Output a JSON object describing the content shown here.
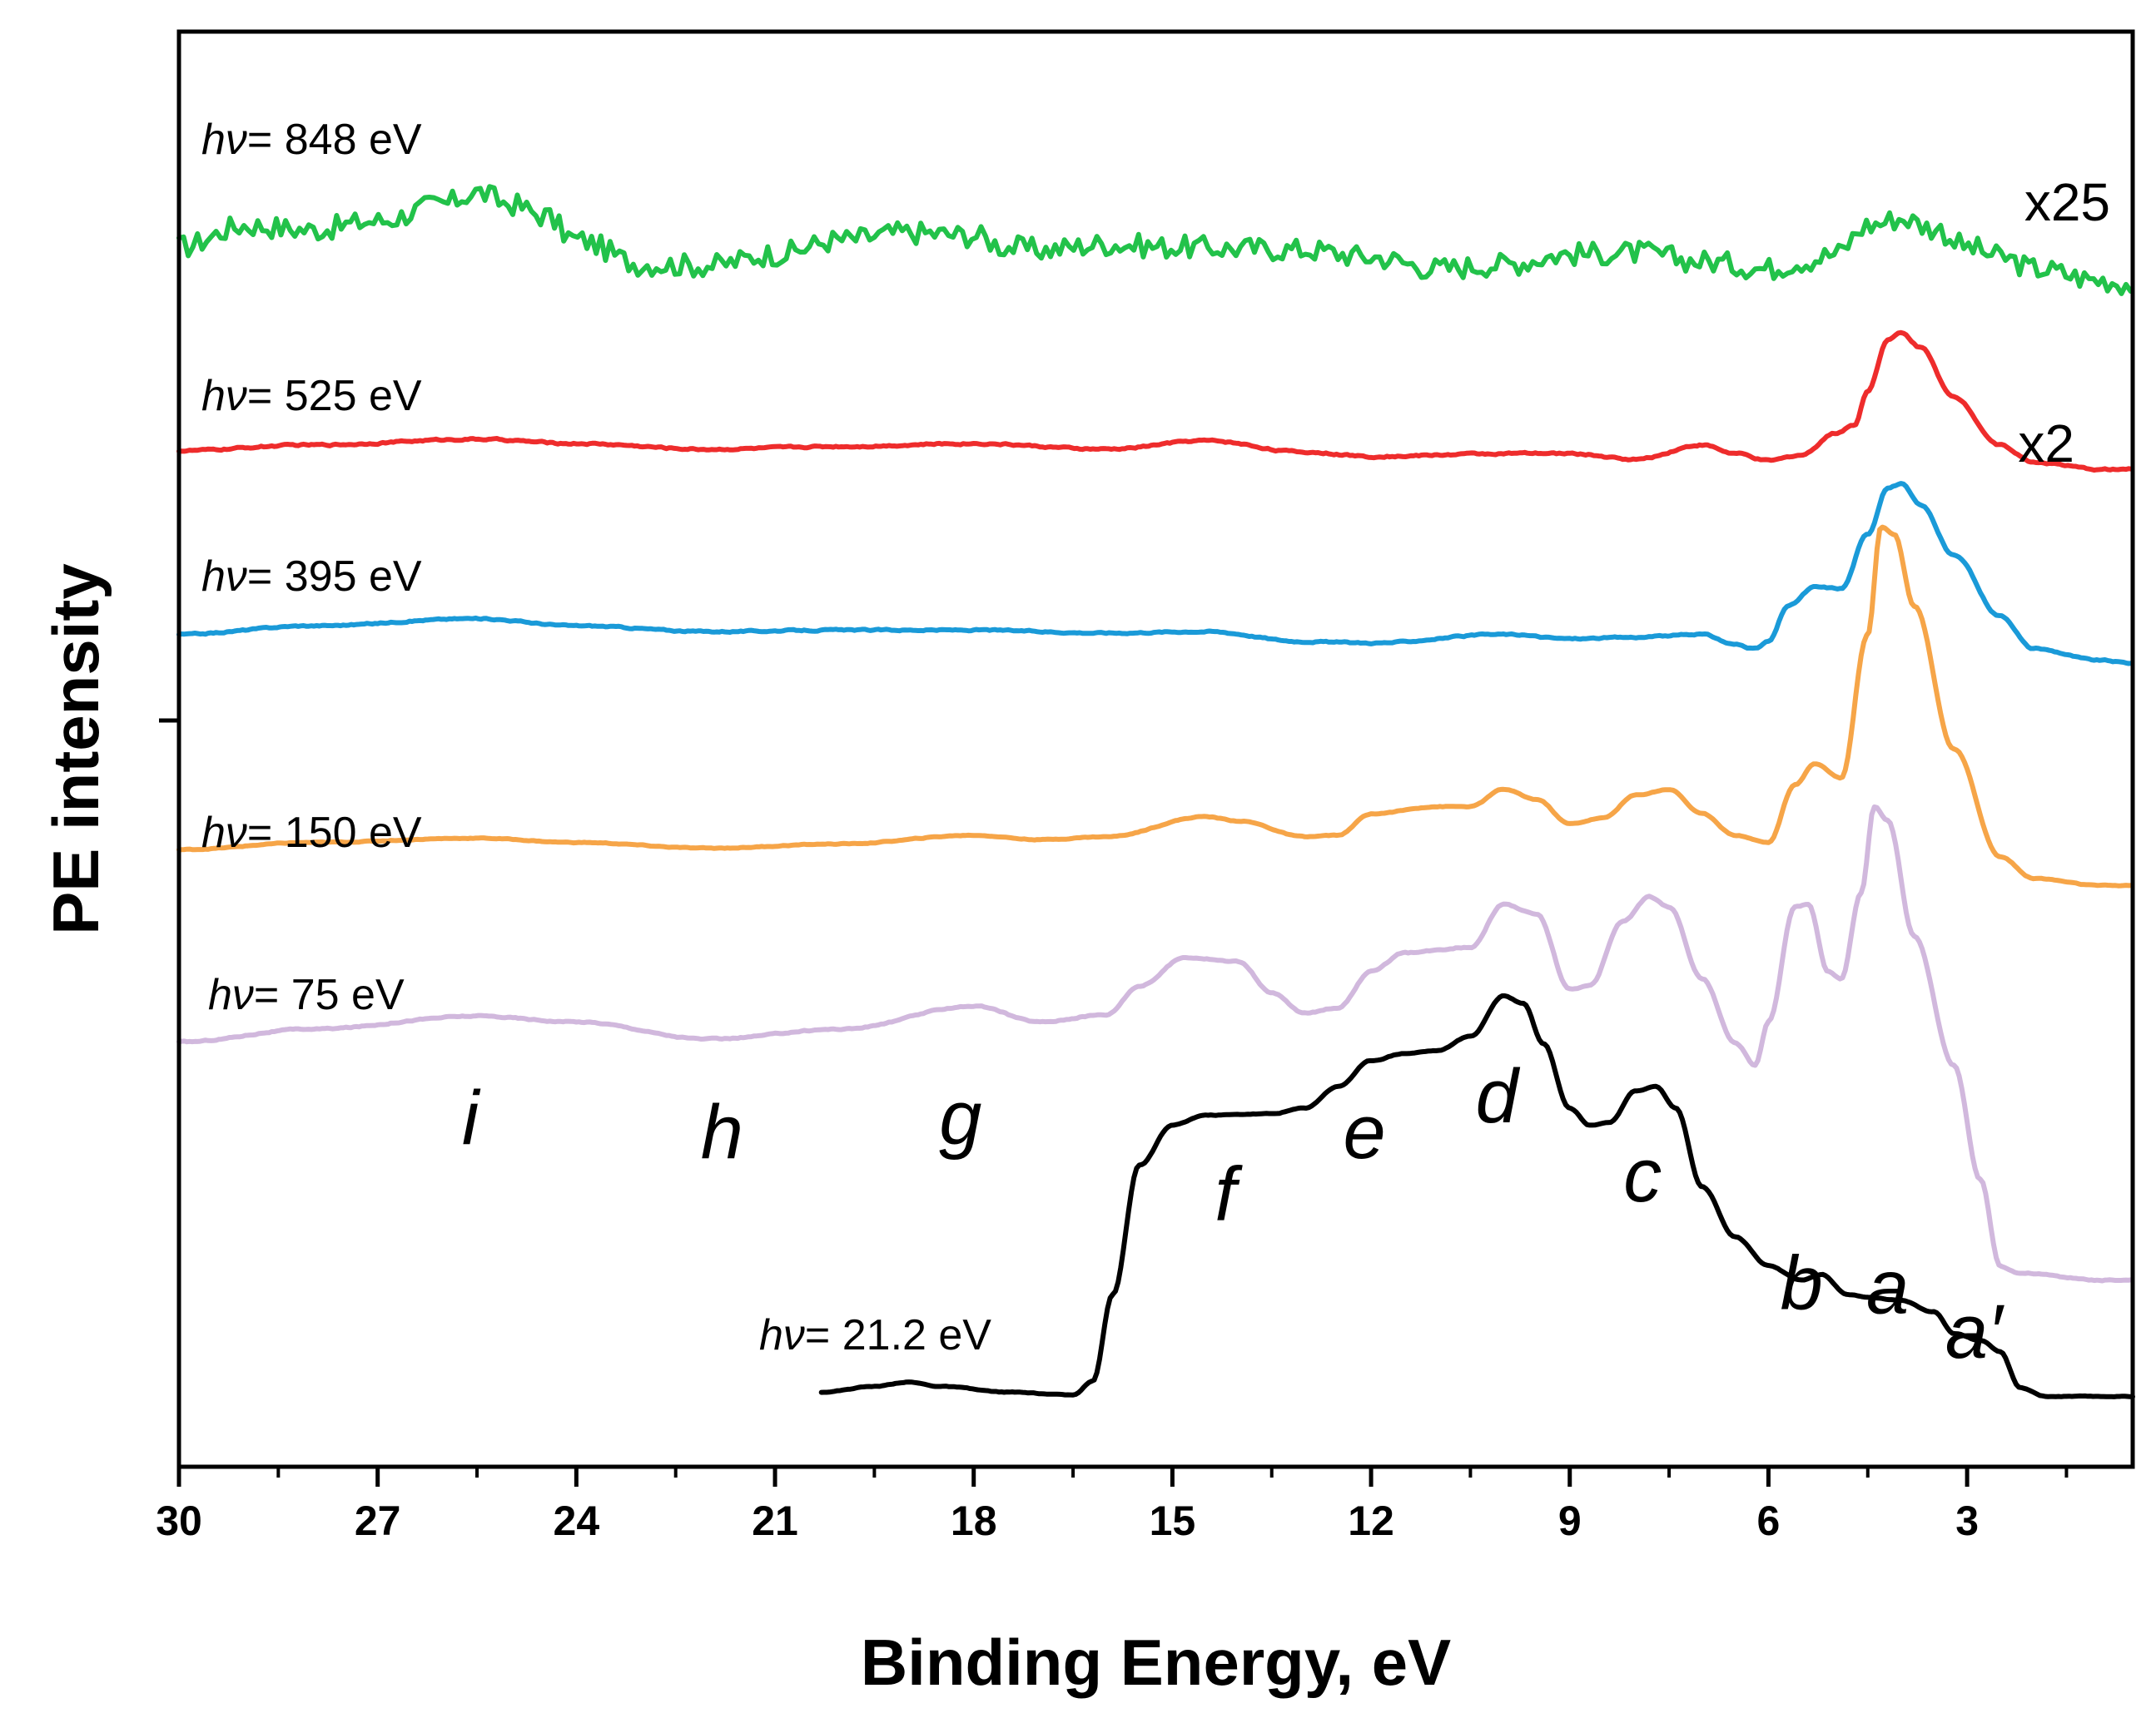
{
  "chart_data": {
    "type": "line",
    "xlabel": "Binding Energy, eV",
    "ylabel": "PE intensity",
    "xlim": [
      30,
      0.5
    ],
    "x_reversed": true,
    "ylim": [
      0,
      100
    ],
    "x_ticks": [
      30,
      27,
      24,
      21,
      18,
      15,
      12,
      9,
      6,
      3
    ],
    "x_minor_ticks": [
      28.5,
      25.5,
      22.5,
      19.5,
      16.5,
      13.5,
      10.5,
      7.5,
      4.5,
      1.5
    ],
    "y_tick_positions": [
      52
    ],
    "grid": false,
    "legend": "none",
    "series": [
      {
        "label_prefix": "hν",
        "label_value": "= 848 eV",
        "scale_text": "x25",
        "color": "#22c24a",
        "noise": 1.6,
        "points": [
          [
            30,
            85.0
          ],
          [
            29,
            86.5
          ],
          [
            28,
            86.2
          ],
          [
            27,
            86.8
          ],
          [
            26,
            88.0
          ],
          [
            25.5,
            88.8
          ],
          [
            25,
            88.0
          ],
          [
            24.5,
            87.2
          ],
          [
            24,
            85.5
          ],
          [
            23,
            83.8
          ],
          [
            22,
            83.7
          ],
          [
            21,
            84.5
          ],
          [
            20,
            85.5
          ],
          [
            19,
            86.0
          ],
          [
            18,
            85.8
          ],
          [
            17.5,
            85.0
          ],
          [
            17,
            84.8
          ],
          [
            16,
            85.2
          ],
          [
            15,
            85.0
          ],
          [
            14,
            84.9
          ],
          [
            13,
            84.8
          ],
          [
            12,
            84.3
          ],
          [
            11,
            83.5
          ],
          [
            10,
            83.8
          ],
          [
            9,
            84.5
          ],
          [
            8,
            84.6
          ],
          [
            7,
            84.0
          ],
          [
            6,
            83.5
          ],
          [
            5.5,
            84.0
          ],
          [
            5,
            84.5
          ],
          [
            4.5,
            86.5
          ],
          [
            4,
            87.0
          ],
          [
            3.5,
            86.3
          ],
          [
            3,
            85.0
          ],
          [
            2.5,
            84.3
          ],
          [
            2,
            83.5
          ],
          [
            1,
            82.7
          ],
          [
            0.5,
            82.4
          ]
        ]
      },
      {
        "label_prefix": "hν",
        "label_value": "= 525 eV",
        "scale_text": "x2",
        "color": "#ee2c2c",
        "noise": 0.25,
        "points": [
          [
            30,
            70.8
          ],
          [
            28,
            71.2
          ],
          [
            25.5,
            71.6
          ],
          [
            24,
            71.3
          ],
          [
            22,
            70.9
          ],
          [
            20,
            71.1
          ],
          [
            18,
            71.3
          ],
          [
            16,
            70.9
          ],
          [
            14.5,
            71.5
          ],
          [
            13,
            70.7
          ],
          [
            12,
            70.4
          ],
          [
            10,
            70.6
          ],
          [
            9,
            70.6
          ],
          [
            8,
            70.2
          ],
          [
            7,
            71.2
          ],
          [
            6.5,
            70.6
          ],
          [
            6,
            70.1
          ],
          [
            5.5,
            70.5
          ],
          [
            5,
            72.0
          ],
          [
            4.7,
            72.6
          ],
          [
            4.5,
            75.0
          ],
          [
            4.2,
            78.5
          ],
          [
            4,
            79.0
          ],
          [
            3.7,
            78.0
          ],
          [
            3.2,
            74.5
          ],
          [
            2.5,
            71.2
          ],
          [
            2,
            70.0
          ],
          [
            1,
            69.5
          ],
          [
            0.5,
            69.5
          ]
        ]
      },
      {
        "label_prefix": "hν",
        "label_value": "= 395 eV",
        "scale_text": "",
        "color": "#1a9ad8",
        "noise": 0.2,
        "points": [
          [
            30,
            58.0
          ],
          [
            28,
            58.6
          ],
          [
            25.5,
            59.1
          ],
          [
            24,
            58.6
          ],
          [
            22,
            58.2
          ],
          [
            20,
            58.3
          ],
          [
            18,
            58.3
          ],
          [
            16,
            58.1
          ],
          [
            14.5,
            58.2
          ],
          [
            13,
            57.5
          ],
          [
            12,
            57.4
          ],
          [
            10,
            58.0
          ],
          [
            9,
            57.7
          ],
          [
            8,
            57.8
          ],
          [
            7,
            58.0
          ],
          [
            6.5,
            57.3
          ],
          [
            6.2,
            57.0
          ],
          [
            6,
            57.5
          ],
          [
            5.7,
            60.0
          ],
          [
            5.3,
            61.3
          ],
          [
            4.9,
            61.2
          ],
          [
            4.5,
            65.0
          ],
          [
            4.2,
            68.2
          ],
          [
            4,
            68.5
          ],
          [
            3.7,
            67.0
          ],
          [
            3.2,
            63.5
          ],
          [
            2.5,
            59.3
          ],
          [
            2,
            57.0
          ],
          [
            1,
            56.2
          ],
          [
            0.5,
            56.0
          ]
        ]
      },
      {
        "label_prefix": "hν",
        "label_value": "= 150 eV",
        "scale_text": "",
        "color": "#f6a548",
        "noise": 0.12,
        "points": [
          [
            30,
            43.0
          ],
          [
            28,
            43.5
          ],
          [
            25.5,
            43.8
          ],
          [
            24,
            43.5
          ],
          [
            22,
            43.1
          ],
          [
            20,
            43.4
          ],
          [
            18,
            44.0
          ],
          [
            17,
            43.7
          ],
          [
            16,
            43.9
          ],
          [
            14.5,
            45.3
          ],
          [
            14,
            45.0
          ],
          [
            13,
            43.9
          ],
          [
            12.5,
            44.0
          ],
          [
            12,
            45.5
          ],
          [
            11,
            46.0
          ],
          [
            10.5,
            46.0
          ],
          [
            10,
            47.2
          ],
          [
            9.5,
            46.5
          ],
          [
            9,
            44.8
          ],
          [
            8.5,
            45.2
          ],
          [
            8,
            46.8
          ],
          [
            7.5,
            47.2
          ],
          [
            7,
            45.5
          ],
          [
            6.5,
            44.0
          ],
          [
            6,
            43.5
          ],
          [
            5.6,
            47.5
          ],
          [
            5.3,
            49.0
          ],
          [
            4.9,
            48.0
          ],
          [
            4.5,
            58.0
          ],
          [
            4.3,
            65.5
          ],
          [
            4.1,
            65.0
          ],
          [
            3.8,
            60.0
          ],
          [
            3.2,
            50.0
          ],
          [
            2.5,
            42.5
          ],
          [
            2,
            41.0
          ],
          [
            1,
            40.5
          ],
          [
            0.5,
            40.5
          ]
        ]
      },
      {
        "label_prefix": "hν",
        "label_value": "= 75 eV",
        "scale_text": "",
        "color": "#d1b8dd",
        "noise": 0.18,
        "points": [
          [
            30,
            29.6
          ],
          [
            28,
            30.5
          ],
          [
            25.5,
            31.4
          ],
          [
            24,
            31.0
          ],
          [
            22,
            29.8
          ],
          [
            20,
            30.5
          ],
          [
            18,
            32.1
          ],
          [
            17,
            31.0
          ],
          [
            16,
            31.5
          ],
          [
            15.5,
            33.5
          ],
          [
            14.8,
            35.5
          ],
          [
            14,
            35.2
          ],
          [
            13.5,
            33.0
          ],
          [
            13,
            31.6
          ],
          [
            12.5,
            32.0
          ],
          [
            12,
            34.5
          ],
          [
            11.5,
            35.8
          ],
          [
            10.5,
            36.2
          ],
          [
            10,
            39.2
          ],
          [
            9.5,
            38.5
          ],
          [
            9,
            33.3
          ],
          [
            8.7,
            33.5
          ],
          [
            8.2,
            38.0
          ],
          [
            7.8,
            39.7
          ],
          [
            7.5,
            39.0
          ],
          [
            7,
            34.0
          ],
          [
            6.5,
            29.5
          ],
          [
            6.2,
            28.0
          ],
          [
            6,
            31.0
          ],
          [
            5.6,
            39.0
          ],
          [
            5.4,
            39.2
          ],
          [
            5.1,
            34.5
          ],
          [
            4.9,
            34.0
          ],
          [
            4.6,
            40.0
          ],
          [
            4.4,
            46.0
          ],
          [
            4.2,
            45.0
          ],
          [
            3.8,
            37.0
          ],
          [
            3.2,
            28.0
          ],
          [
            2.8,
            20.0
          ],
          [
            2.5,
            14.0
          ],
          [
            2.2,
            13.5
          ],
          [
            1,
            13.0
          ],
          [
            0.5,
            13.0
          ]
        ]
      },
      {
        "label_prefix": "hν",
        "label_value": "= 21.2 eV",
        "scale_text": "",
        "color": "#000000",
        "noise": 0.1,
        "points": [
          [
            20.3,
            5.2
          ],
          [
            19.5,
            5.6
          ],
          [
            19,
            5.9
          ],
          [
            18.5,
            5.6
          ],
          [
            17.5,
            5.2
          ],
          [
            16.5,
            5.0
          ],
          [
            16.2,
            6.0
          ],
          [
            15.9,
            12.0
          ],
          [
            15.5,
            21.0
          ],
          [
            15,
            23.8
          ],
          [
            14.5,
            24.5
          ],
          [
            13.5,
            24.6
          ],
          [
            13,
            25.0
          ],
          [
            12.5,
            26.5
          ],
          [
            12,
            28.3
          ],
          [
            11.5,
            28.8
          ],
          [
            11,
            29.0
          ],
          [
            10.5,
            30.0
          ],
          [
            10,
            32.8
          ],
          [
            9.7,
            32.3
          ],
          [
            9.4,
            29.5
          ],
          [
            9,
            25.0
          ],
          [
            8.7,
            23.8
          ],
          [
            8.4,
            24.0
          ],
          [
            8,
            26.2
          ],
          [
            7.7,
            26.5
          ],
          [
            7.4,
            25.0
          ],
          [
            7,
            19.5
          ],
          [
            6.5,
            16.0
          ],
          [
            6,
            14.0
          ],
          [
            5.5,
            13.0
          ],
          [
            5.2,
            13.4
          ],
          [
            4.8,
            12.0
          ],
          [
            4.5,
            11.8
          ],
          [
            4,
            11.6
          ],
          [
            3.5,
            10.8
          ],
          [
            3.2,
            9.3
          ],
          [
            2.8,
            8.8
          ],
          [
            2.5,
            8.0
          ],
          [
            2.2,
            5.5
          ],
          [
            1.8,
            4.9
          ],
          [
            1,
            4.9
          ],
          [
            0.5,
            4.9
          ]
        ]
      }
    ],
    "peak_labels": [
      {
        "text": "i",
        "x": 25.6,
        "y": 22.5
      },
      {
        "text": "h",
        "x": 21.8,
        "y": 21.5
      },
      {
        "text": "g",
        "x": 18.2,
        "y": 22.5
      },
      {
        "text": "f",
        "x": 14.2,
        "y": 17.2
      },
      {
        "text": "e",
        "x": 12.1,
        "y": 21.5
      },
      {
        "text": "d",
        "x": 10.1,
        "y": 24.0
      },
      {
        "text": "c",
        "x": 7.9,
        "y": 18.5
      },
      {
        "text": "b",
        "x": 5.5,
        "y": 11.0
      },
      {
        "text": "a",
        "x": 4.2,
        "y": 10.7
      },
      {
        "text": "a′",
        "x": 2.9,
        "y": 7.6
      }
    ]
  }
}
